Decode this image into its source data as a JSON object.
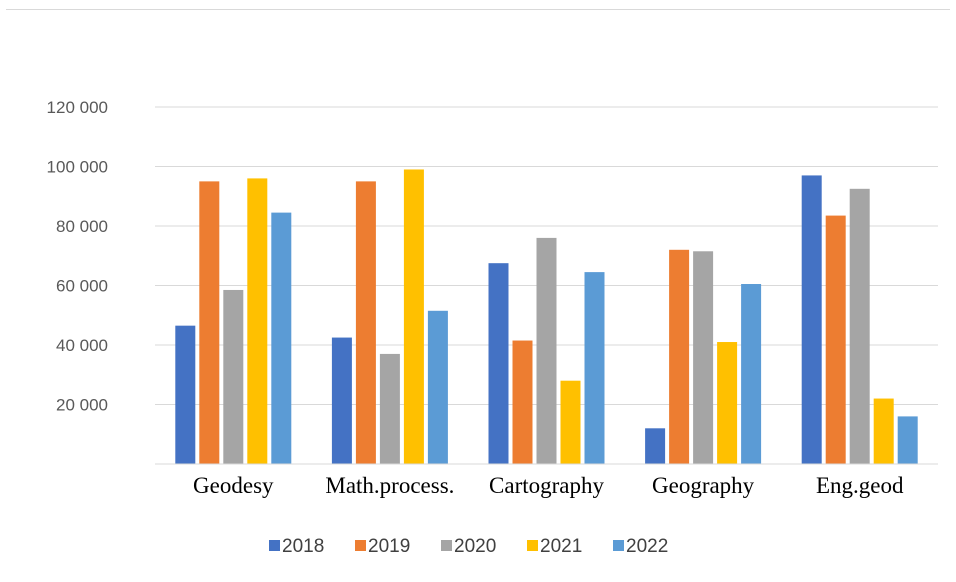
{
  "chart_data": {
    "type": "bar",
    "title": "",
    "xlabel": "",
    "ylabel": "",
    "categories": [
      "Geodesy",
      "Math.process.",
      "Cartography",
      "Geography",
      "Eng.geod"
    ],
    "series": [
      {
        "name": "2018",
        "color": "#4472C4",
        "values": [
          46500,
          42500,
          67500,
          12000,
          97000
        ]
      },
      {
        "name": "2019",
        "color": "#ED7D31",
        "values": [
          95000,
          95000,
          41500,
          72000,
          83500
        ]
      },
      {
        "name": "2020",
        "color": "#A5A5A5",
        "values": [
          58500,
          37000,
          76000,
          71500,
          92500
        ]
      },
      {
        "name": "2021",
        "color": "#FFC000",
        "values": [
          96000,
          99000,
          28000,
          41000,
          22000
        ]
      },
      {
        "name": "2022",
        "color": "#5B9BD5",
        "values": [
          84500,
          51500,
          64500,
          60500,
          16000
        ]
      }
    ],
    "ylim": [
      0,
      120000
    ],
    "yticks": [
      20000,
      40000,
      60000,
      80000,
      100000,
      120000
    ],
    "ytick_labels": [
      "20 000",
      "40 000",
      "60 000",
      "80 000",
      "100 000",
      "120 000"
    ],
    "grid": true,
    "legend": "bottom-center"
  }
}
